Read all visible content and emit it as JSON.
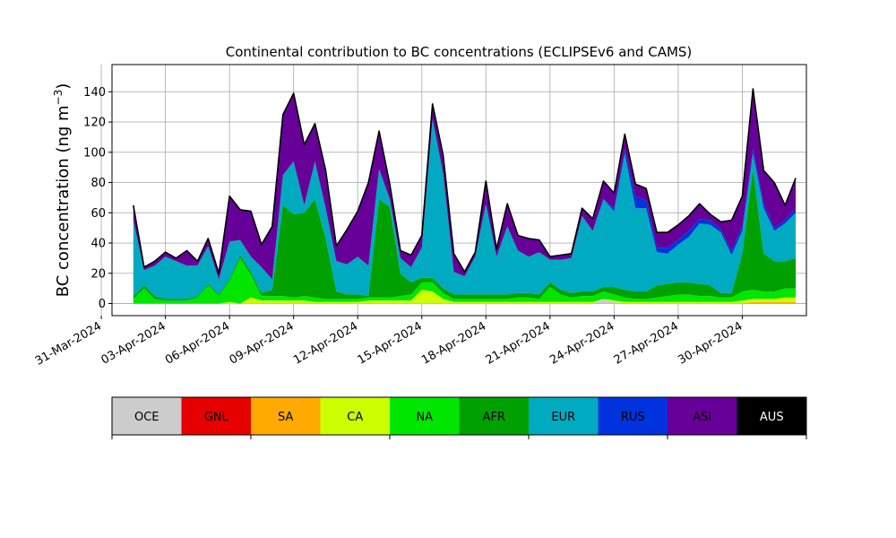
{
  "chart_data": {
    "type": "area",
    "stacked": true,
    "title": "Continental contribution to BC concentrations (ECLIPSEv6 and CAMS)",
    "ylabel": "BC concentration (ng m",
    "ylabel_superscript": "−3",
    "ylabel_suffix": ")",
    "ylim": [
      -8,
      158
    ],
    "yticks": [
      0,
      20,
      40,
      60,
      80,
      100,
      120,
      140
    ],
    "xlim": [
      "2024-03-31T12:00",
      "2024-05-03T00:00"
    ],
    "xticks": [
      "2024-03-31",
      "2024-04-03",
      "2024-04-06",
      "2024-04-09",
      "2024-04-12",
      "2024-04-15",
      "2024-04-18",
      "2024-04-21",
      "2024-04-24",
      "2024-04-27",
      "2024-04-30"
    ],
    "xtick_labels": [
      "31-Mar-2024",
      "03-Apr-2024",
      "06-Apr-2024",
      "09-Apr-2024",
      "12-Apr-2024",
      "15-Apr-2024",
      "18-Apr-2024",
      "21-Apr-2024",
      "24-Apr-2024",
      "27-Apr-2024",
      "30-Apr-2024"
    ],
    "grid": true,
    "legend_position": "below",
    "x": [
      "2024-04-01T12:00",
      "2024-04-02T00:00",
      "2024-04-02T12:00",
      "2024-04-03T00:00",
      "2024-04-03T12:00",
      "2024-04-04T00:00",
      "2024-04-04T12:00",
      "2024-04-05T00:00",
      "2024-04-05T12:00",
      "2024-04-06T00:00",
      "2024-04-06T12:00",
      "2024-04-07T00:00",
      "2024-04-07T12:00",
      "2024-04-08T00:00",
      "2024-04-08T12:00",
      "2024-04-09T00:00",
      "2024-04-09T12:00",
      "2024-04-10T00:00",
      "2024-04-10T12:00",
      "2024-04-11T00:00",
      "2024-04-11T12:00",
      "2024-04-12T00:00",
      "2024-04-12T12:00",
      "2024-04-13T00:00",
      "2024-04-13T12:00",
      "2024-04-14T00:00",
      "2024-04-14T12:00",
      "2024-04-15T00:00",
      "2024-04-15T12:00",
      "2024-04-16T00:00",
      "2024-04-16T12:00",
      "2024-04-17T00:00",
      "2024-04-17T12:00",
      "2024-04-18T00:00",
      "2024-04-18T12:00",
      "2024-04-19T00:00",
      "2024-04-19T12:00",
      "2024-04-20T00:00",
      "2024-04-20T12:00",
      "2024-04-21T00:00",
      "2024-04-21T12:00",
      "2024-04-22T00:00",
      "2024-04-22T12:00",
      "2024-04-23T00:00",
      "2024-04-23T12:00",
      "2024-04-24T00:00",
      "2024-04-24T12:00",
      "2024-04-25T00:00",
      "2024-04-25T12:00",
      "2024-04-26T00:00",
      "2024-04-26T12:00",
      "2024-04-27T00:00",
      "2024-04-27T12:00",
      "2024-04-28T00:00",
      "2024-04-28T12:00",
      "2024-04-29T00:00",
      "2024-04-29T12:00",
      "2024-04-30T00:00",
      "2024-04-30T12:00",
      "2024-05-01T00:00",
      "2024-05-01T12:00",
      "2024-05-02T00:00",
      "2024-05-02T12:00"
    ],
    "series": [
      {
        "name": "OCE",
        "color": "#cccccc",
        "values": [
          0,
          0,
          0,
          0,
          0,
          0,
          0,
          0,
          0,
          0,
          0,
          0,
          0,
          0,
          0,
          0,
          0,
          0,
          0,
          0,
          0,
          0,
          0,
          0,
          0,
          0,
          0,
          0,
          0,
          0,
          0,
          0,
          0,
          0,
          0,
          0,
          0,
          0,
          0,
          0,
          0,
          0,
          0,
          0,
          3,
          1,
          0,
          0,
          0,
          0,
          0,
          0,
          0,
          0,
          0,
          0,
          0,
          0,
          0,
          0,
          0,
          0,
          0
        ]
      },
      {
        "name": "GNL",
        "color": "#e60000",
        "values": [
          0,
          0,
          0,
          0,
          0,
          0,
          0,
          0,
          0,
          0,
          0,
          0,
          0,
          0,
          0,
          0,
          0,
          0,
          0,
          0,
          0,
          0,
          0,
          0,
          0,
          0,
          0,
          0,
          0,
          0,
          0,
          0,
          0,
          0,
          0,
          0,
          0,
          0,
          0,
          0,
          0,
          0,
          0,
          0,
          0,
          0,
          0,
          0,
          0,
          0,
          0,
          0,
          0,
          0,
          0,
          0,
          0,
          0,
          0,
          0,
          0,
          0,
          0
        ]
      },
      {
        "name": "SA",
        "color": "#ffaa00",
        "values": [
          0,
          0,
          0,
          0,
          0,
          0,
          0,
          0,
          0,
          0,
          0,
          0,
          0,
          0,
          0,
          0,
          0,
          0,
          0,
          0,
          0,
          0,
          0,
          0,
          0,
          0,
          0,
          0,
          0,
          0,
          0,
          0,
          0,
          0,
          0,
          0,
          0,
          0,
          0,
          0,
          0,
          0,
          0,
          0,
          0,
          0,
          0,
          0,
          0,
          0,
          0,
          0,
          0,
          0,
          0,
          0,
          0,
          0,
          1,
          1,
          1,
          1,
          1
        ]
      },
      {
        "name": "CA",
        "color": "#ccff00",
        "values": [
          0,
          0,
          0,
          0,
          0,
          0,
          0,
          0,
          0,
          1,
          0,
          4,
          2,
          2,
          2,
          2,
          2,
          1,
          1,
          1,
          1,
          1,
          2,
          2,
          2,
          2,
          2,
          9,
          8,
          3,
          1,
          1,
          1,
          1,
          1,
          1,
          1,
          1,
          1,
          1,
          1,
          1,
          1,
          1,
          0,
          1,
          1,
          1,
          1,
          1,
          1,
          1,
          1,
          1,
          1,
          1,
          1,
          2,
          2,
          2,
          2,
          3,
          3
        ]
      },
      {
        "name": "NA",
        "color": "#00e600",
        "values": [
          3,
          10,
          3,
          2,
          2,
          2,
          4,
          12,
          5,
          14,
          30,
          15,
          3,
          3,
          3,
          2,
          3,
          3,
          2,
          2,
          2,
          2,
          2,
          2,
          2,
          3,
          4,
          5,
          6,
          4,
          2,
          2,
          2,
          2,
          2,
          2,
          3,
          3,
          2,
          10,
          5,
          3,
          4,
          4,
          5,
          4,
          3,
          2,
          2,
          3,
          4,
          5,
          5,
          4,
          4,
          3,
          3,
          6,
          6,
          5,
          5,
          6,
          6
        ]
      },
      {
        "name": "AFR",
        "color": "#00a000",
        "values": [
          2,
          2,
          2,
          1,
          1,
          1,
          1,
          1,
          1,
          1,
          2,
          2,
          2,
          4,
          60,
          55,
          55,
          65,
          40,
          5,
          3,
          3,
          1,
          65,
          60,
          15,
          8,
          3,
          3,
          3,
          3,
          3,
          3,
          3,
          3,
          3,
          3,
          3,
          3,
          3,
          3,
          3,
          3,
          3,
          3,
          5,
          5,
          5,
          5,
          8,
          8,
          8,
          8,
          8,
          7,
          3,
          3,
          25,
          80,
          25,
          20,
          18,
          20
        ]
      },
      {
        "name": "EUR",
        "color": "#00aac0",
        "values": [
          50,
          10,
          20,
          28,
          25,
          22,
          20,
          25,
          10,
          25,
          10,
          10,
          17,
          7,
          20,
          35,
          5,
          25,
          20,
          20,
          20,
          25,
          20,
          20,
          5,
          10,
          10,
          20,
          105,
          75,
          15,
          12,
          25,
          60,
          25,
          45,
          28,
          24,
          28,
          15,
          20,
          23,
          50,
          40,
          58,
          50,
          90,
          55,
          55,
          22,
          20,
          25,
          30,
          40,
          40,
          40,
          25,
          15,
          10,
          30,
          20,
          25,
          30
        ]
      },
      {
        "name": "RUS",
        "color": "#0033dd",
        "values": [
          0,
          0,
          0,
          0,
          0,
          0,
          0,
          0,
          0,
          0,
          0,
          0,
          0,
          0,
          0,
          0,
          0,
          0,
          0,
          0,
          0,
          0,
          0,
          0,
          0,
          0,
          0,
          0,
          0,
          1,
          0,
          0,
          0,
          0,
          0,
          0,
          0,
          0,
          0,
          0,
          0,
          0,
          0,
          0,
          0,
          2,
          3,
          8,
          5,
          3,
          4,
          3,
          4,
          3,
          3,
          2,
          3,
          3,
          3,
          3,
          2,
          2,
          3
        ]
      },
      {
        "name": "ASI",
        "color": "#660099",
        "values": [
          10,
          2,
          3,
          3,
          2,
          10,
          3,
          5,
          4,
          30,
          20,
          30,
          15,
          35,
          40,
          45,
          40,
          25,
          25,
          10,
          23,
          30,
          55,
          25,
          10,
          5,
          8,
          8,
          10,
          12,
          12,
          3,
          3,
          15,
          5,
          15,
          10,
          12,
          8,
          2,
          3,
          3,
          5,
          8,
          12,
          10,
          10,
          8,
          8,
          10,
          10,
          10,
          10,
          10,
          4,
          5,
          20,
          20,
          40,
          22,
          30,
          10,
          20
        ]
      },
      {
        "name": "AUS",
        "color": "#000000",
        "values": [
          0,
          0,
          0,
          0,
          0,
          0,
          0,
          0,
          0,
          0,
          0,
          0,
          0,
          0,
          0,
          0,
          0,
          0,
          0,
          0,
          0,
          0,
          0,
          0,
          0,
          0,
          0,
          0,
          0,
          0,
          0,
          0,
          0,
          0,
          0,
          0,
          0,
          0,
          0,
          0,
          0,
          0,
          0,
          0,
          0,
          0,
          0,
          0,
          0,
          0,
          0,
          0,
          0,
          0,
          0,
          0,
          0,
          0,
          0,
          0,
          0,
          0,
          0
        ]
      }
    ],
    "legend": [
      "OCE",
      "GNL",
      "SA",
      "CA",
      "NA",
      "AFR",
      "EUR",
      "RUS",
      "ASI",
      "AUS"
    ],
    "legend_text_colors": [
      "#000000",
      "#000000",
      "#000000",
      "#000000",
      "#000000",
      "#000000",
      "#000000",
      "#000000",
      "#000000",
      "#ffffff"
    ]
  }
}
